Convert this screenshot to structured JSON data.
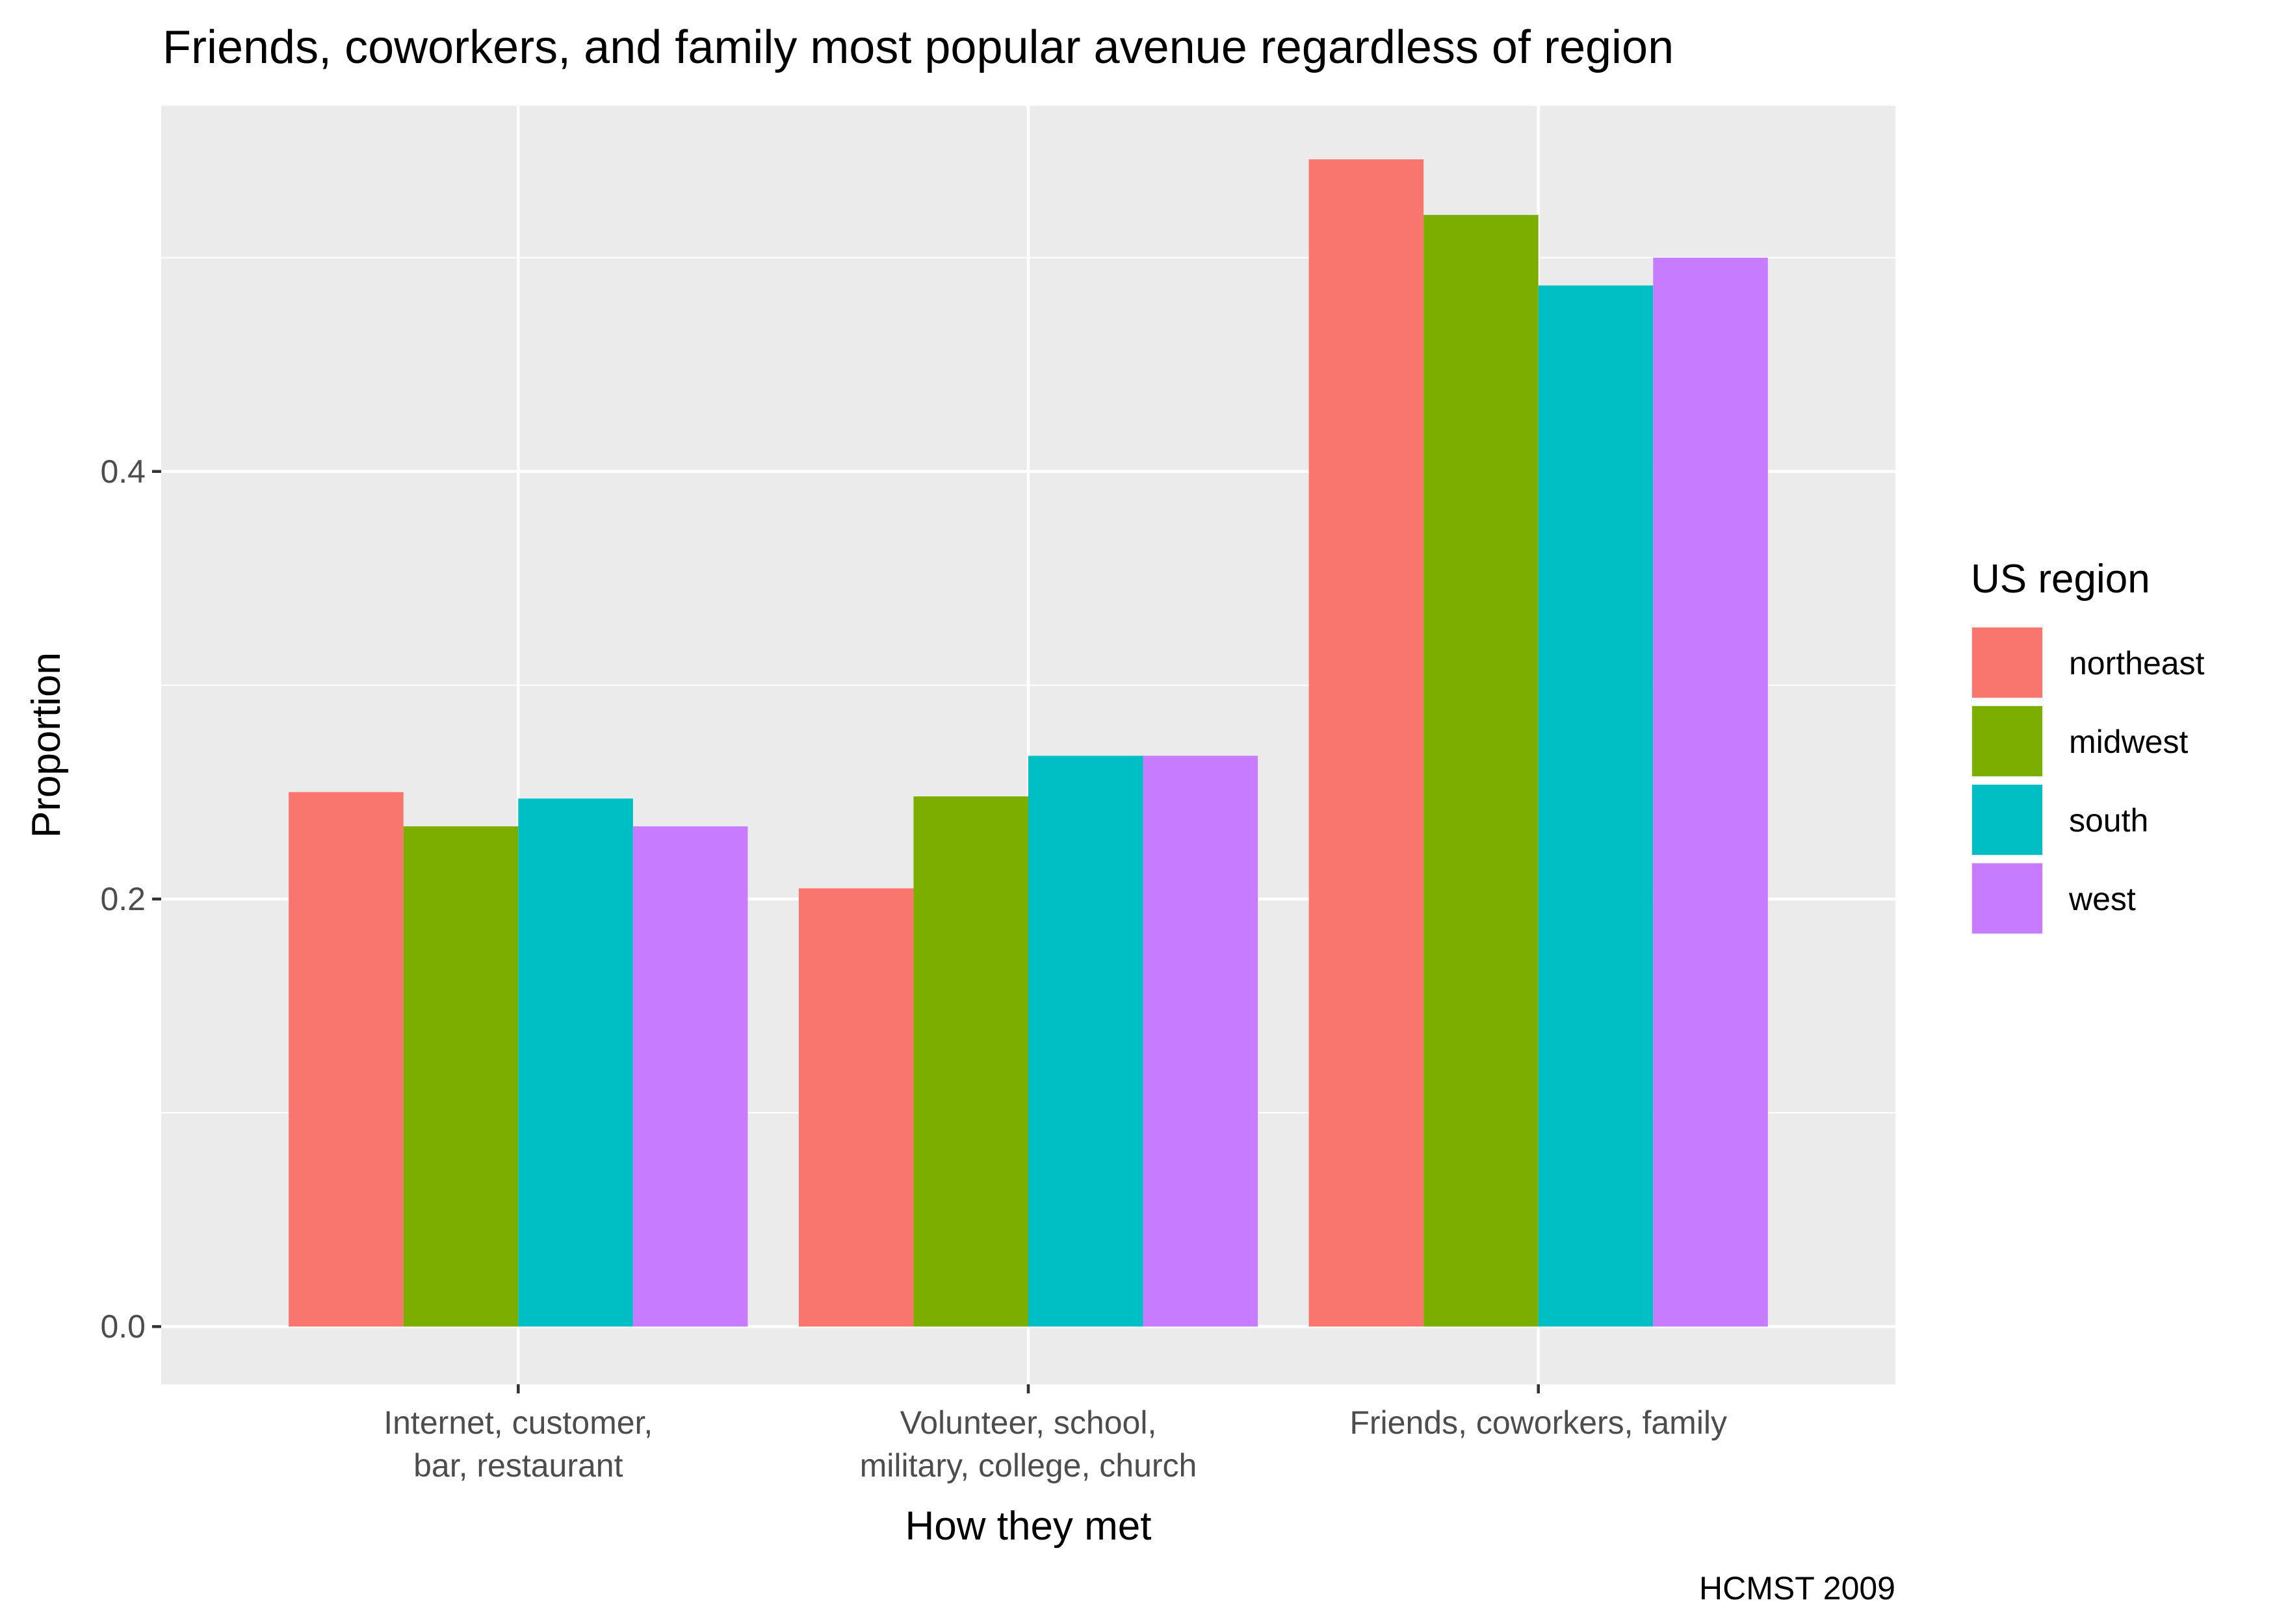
{
  "chart_data": {
    "type": "bar",
    "title": "Friends, coworkers, and family most popular avenue regardless of region",
    "xlabel": "How they met",
    "ylabel": "Proportion",
    "caption": "HCMST 2009",
    "categories": [
      [
        "Internet, customer,",
        "bar, restaurant"
      ],
      [
        "Volunteer, school,",
        "military, college, church"
      ],
      [
        "Friends, coworkers, family"
      ]
    ],
    "y_ticks": [
      {
        "value": 0.0,
        "label": "0.0"
      },
      {
        "value": 0.2,
        "label": "0.2"
      },
      {
        "value": 0.4,
        "label": "0.4"
      }
    ],
    "ylim": [
      -0.027,
      0.571
    ],
    "grid": true,
    "legend": {
      "title": "US region",
      "position": "right"
    },
    "series": [
      {
        "name": "northeast",
        "color": "#F8766D",
        "values": [
          0.25,
          0.205,
          0.546
        ]
      },
      {
        "name": "midwest",
        "color": "#7CAE00",
        "values": [
          0.234,
          0.248,
          0.52
        ]
      },
      {
        "name": "south",
        "color": "#00BFC4",
        "values": [
          0.247,
          0.267,
          0.487
        ]
      },
      {
        "name": "west",
        "color": "#C77CFF",
        "values": [
          0.234,
          0.267,
          0.5
        ]
      }
    ]
  }
}
